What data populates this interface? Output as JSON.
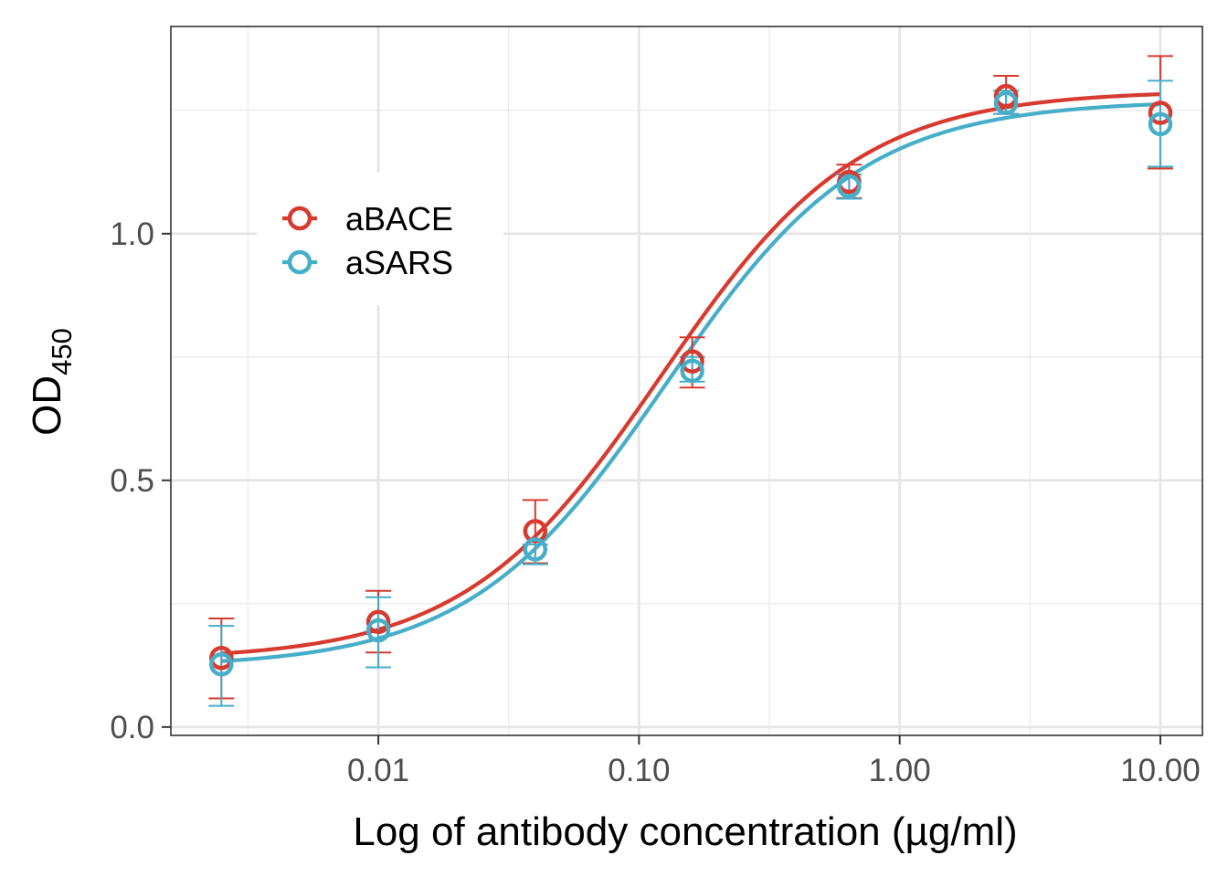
{
  "chart_data": {
    "type": "scatter",
    "title": "",
    "xlabel": "Log of antibody concentration (µg/ml)",
    "ylabel_main": "OD",
    "ylabel_sub": "450",
    "xscale": "log10",
    "xlim": [
      0.0016,
      14.5
    ],
    "ylim": [
      -0.017,
      1.42
    ],
    "x_ticks": [
      0.01,
      0.1,
      1,
      10
    ],
    "x_tick_labels": [
      "0.01",
      "0.10",
      "1.00",
      "10.00"
    ],
    "y_ticks": [
      0,
      0.5,
      1
    ],
    "y_tick_labels": [
      "0.0",
      "0.5",
      "1.0"
    ],
    "grid": true,
    "legend_position": "top-left",
    "colors": {
      "aBACE": "#d73a2f",
      "aSARS": "#46aec9"
    },
    "series": [
      {
        "name": "aBACE",
        "color": "#d73a2f",
        "x": [
          0.0025,
          0.01,
          0.04,
          0.16,
          0.64,
          2.56,
          10.0
        ],
        "y": [
          0.14,
          0.213,
          0.397,
          0.741,
          1.105,
          1.279,
          1.245
        ],
        "err_low": [
          0.058,
          0.151,
          0.332,
          0.688,
          1.072,
          1.243,
          1.132
        ],
        "err_high": [
          0.22,
          0.276,
          0.46,
          0.79,
          1.14,
          1.32,
          1.36
        ],
        "fit": {
          "bottom": 0.136,
          "top": 1.29,
          "ec50": 0.122,
          "hill": 1.15
        }
      },
      {
        "name": "aSARS",
        "color": "#46aec9",
        "x": [
          0.0025,
          0.01,
          0.04,
          0.16,
          0.64,
          2.56,
          10.0
        ],
        "y": [
          0.127,
          0.196,
          0.36,
          0.722,
          1.096,
          1.265,
          1.222
        ],
        "err_low": [
          0.043,
          0.121,
          0.33,
          0.7,
          1.071,
          1.243,
          1.136
        ],
        "err_high": [
          0.205,
          0.263,
          0.37,
          0.75,
          1.12,
          1.29,
          1.31
        ],
        "fit": {
          "bottom": 0.121,
          "top": 1.27,
          "ec50": 0.127,
          "hill": 1.15
        }
      }
    ]
  }
}
